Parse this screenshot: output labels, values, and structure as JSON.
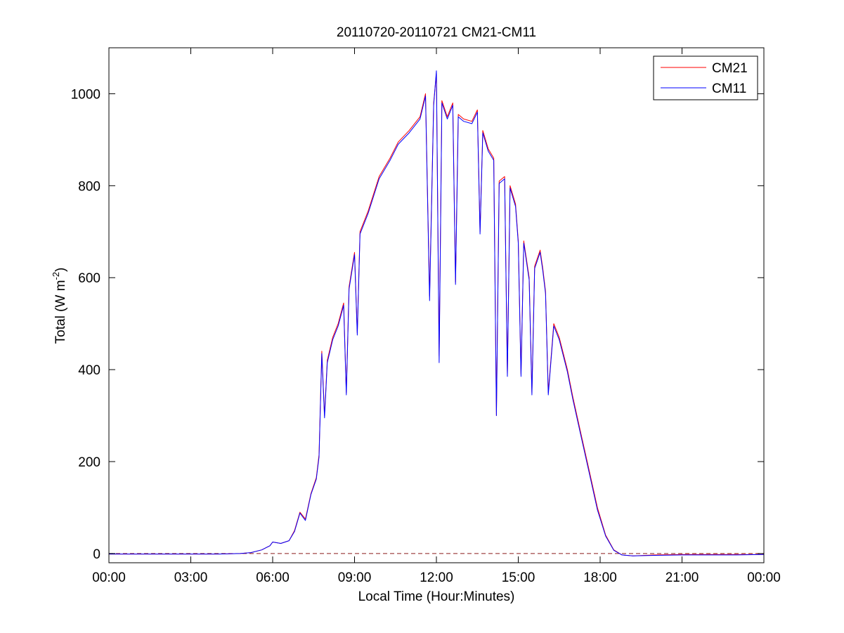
{
  "chart_data": {
    "type": "line",
    "title": "20110720-20110721 CM21-CM11",
    "xlabel": "Local Time (Hour:Minutes)",
    "ylabel": "Total (W m",
    "ylabel_sup": "-2",
    "ylabel_close": ")",
    "xlim_hours": [
      0,
      24
    ],
    "ylim": [
      -20,
      1100
    ],
    "grid": false,
    "legend_position": "top-right",
    "x_ticks": [
      {
        "hours": 0,
        "label": "00:00"
      },
      {
        "hours": 3,
        "label": "03:00"
      },
      {
        "hours": 6,
        "label": "06:00"
      },
      {
        "hours": 9,
        "label": "09:00"
      },
      {
        "hours": 12,
        "label": "12:00"
      },
      {
        "hours": 15,
        "label": "15:00"
      },
      {
        "hours": 18,
        "label": "18:00"
      },
      {
        "hours": 21,
        "label": "21:00"
      },
      {
        "hours": 24,
        "label": "00:00"
      }
    ],
    "y_ticks": [
      {
        "value": 0,
        "label": "0"
      },
      {
        "value": 200,
        "label": "200"
      },
      {
        "value": 400,
        "label": "400"
      },
      {
        "value": 600,
        "label": "600"
      },
      {
        "value": 800,
        "label": "800"
      },
      {
        "value": 1000,
        "label": "1000"
      }
    ],
    "zero_reference_line": {
      "value": 0,
      "style": "dashed",
      "color": "#8B1A1A"
    },
    "series": [
      {
        "name": "CM21",
        "color": "#ff0000",
        "points": [
          [
            0,
            -1
          ],
          [
            1,
            -1
          ],
          [
            2,
            -1
          ],
          [
            3,
            -1
          ],
          [
            4,
            -1
          ],
          [
            4.8,
            0
          ],
          [
            5.2,
            2
          ],
          [
            5.6,
            8
          ],
          [
            5.9,
            17
          ],
          [
            6.0,
            25
          ],
          [
            6.3,
            22
          ],
          [
            6.6,
            28
          ],
          [
            6.8,
            50
          ],
          [
            7.0,
            90
          ],
          [
            7.2,
            75
          ],
          [
            7.4,
            130
          ],
          [
            7.6,
            165
          ],
          [
            7.7,
            215
          ],
          [
            7.8,
            440
          ],
          [
            7.9,
            300
          ],
          [
            8.0,
            420
          ],
          [
            8.2,
            470
          ],
          [
            8.4,
            500
          ],
          [
            8.6,
            545
          ],
          [
            8.7,
            350
          ],
          [
            8.8,
            580
          ],
          [
            9.0,
            655
          ],
          [
            9.1,
            480
          ],
          [
            9.2,
            700
          ],
          [
            9.5,
            745
          ],
          [
            9.9,
            820
          ],
          [
            10.3,
            860
          ],
          [
            10.6,
            895
          ],
          [
            11.0,
            920
          ],
          [
            11.4,
            950
          ],
          [
            11.6,
            1000
          ],
          [
            11.75,
            560
          ],
          [
            11.9,
            980
          ],
          [
            12.0,
            1045
          ],
          [
            12.1,
            430
          ],
          [
            12.2,
            985
          ],
          [
            12.4,
            950
          ],
          [
            12.6,
            980
          ],
          [
            12.7,
            590
          ],
          [
            12.8,
            955
          ],
          [
            13.0,
            945
          ],
          [
            13.3,
            940
          ],
          [
            13.5,
            965
          ],
          [
            13.6,
            700
          ],
          [
            13.7,
            920
          ],
          [
            13.9,
            880
          ],
          [
            14.1,
            860
          ],
          [
            14.2,
            300
          ],
          [
            14.3,
            810
          ],
          [
            14.5,
            820
          ],
          [
            14.6,
            390
          ],
          [
            14.7,
            800
          ],
          [
            14.9,
            760
          ],
          [
            15.0,
            680
          ],
          [
            15.1,
            390
          ],
          [
            15.2,
            680
          ],
          [
            15.4,
            600
          ],
          [
            15.5,
            350
          ],
          [
            15.6,
            625
          ],
          [
            15.8,
            660
          ],
          [
            15.9,
            620
          ],
          [
            16.0,
            570
          ],
          [
            16.1,
            350
          ],
          [
            16.3,
            500
          ],
          [
            16.5,
            470
          ],
          [
            16.8,
            400
          ],
          [
            17.0,
            340
          ],
          [
            17.3,
            260
          ],
          [
            17.6,
            180
          ],
          [
            17.9,
            100
          ],
          [
            18.2,
            40
          ],
          [
            18.5,
            8
          ],
          [
            18.8,
            -3
          ],
          [
            19.2,
            -5
          ],
          [
            20,
            -3
          ],
          [
            21,
            -2
          ],
          [
            22,
            -2
          ],
          [
            23,
            -2
          ],
          [
            24,
            -2
          ]
        ]
      },
      {
        "name": "CM11",
        "color": "#0000ff",
        "points": [
          [
            0,
            -1
          ],
          [
            1,
            -1
          ],
          [
            2,
            -1
          ],
          [
            3,
            -1
          ],
          [
            4,
            -1
          ],
          [
            4.8,
            0
          ],
          [
            5.2,
            2
          ],
          [
            5.6,
            8
          ],
          [
            5.9,
            17
          ],
          [
            6.0,
            25
          ],
          [
            6.3,
            22
          ],
          [
            6.6,
            28
          ],
          [
            6.8,
            48
          ],
          [
            7.0,
            88
          ],
          [
            7.2,
            72
          ],
          [
            7.4,
            128
          ],
          [
            7.6,
            162
          ],
          [
            7.7,
            210
          ],
          [
            7.8,
            435
          ],
          [
            7.9,
            295
          ],
          [
            8.0,
            415
          ],
          [
            8.2,
            465
          ],
          [
            8.4,
            495
          ],
          [
            8.6,
            540
          ],
          [
            8.7,
            345
          ],
          [
            8.8,
            575
          ],
          [
            9.0,
            650
          ],
          [
            9.1,
            475
          ],
          [
            9.2,
            695
          ],
          [
            9.5,
            740
          ],
          [
            9.9,
            815
          ],
          [
            10.3,
            855
          ],
          [
            10.6,
            890
          ],
          [
            11.0,
            915
          ],
          [
            11.4,
            945
          ],
          [
            11.6,
            995
          ],
          [
            11.75,
            550
          ],
          [
            11.9,
            975
          ],
          [
            12.0,
            1050
          ],
          [
            12.1,
            415
          ],
          [
            12.2,
            980
          ],
          [
            12.4,
            945
          ],
          [
            12.6,
            975
          ],
          [
            12.7,
            585
          ],
          [
            12.8,
            950
          ],
          [
            13.0,
            940
          ],
          [
            13.3,
            935
          ],
          [
            13.5,
            960
          ],
          [
            13.6,
            695
          ],
          [
            13.7,
            915
          ],
          [
            13.9,
            875
          ],
          [
            14.1,
            855
          ],
          [
            14.2,
            300
          ],
          [
            14.3,
            805
          ],
          [
            14.5,
            815
          ],
          [
            14.6,
            385
          ],
          [
            14.7,
            795
          ],
          [
            14.9,
            755
          ],
          [
            15.0,
            675
          ],
          [
            15.1,
            385
          ],
          [
            15.2,
            675
          ],
          [
            15.4,
            595
          ],
          [
            15.5,
            345
          ],
          [
            15.6,
            620
          ],
          [
            15.8,
            655
          ],
          [
            15.9,
            615
          ],
          [
            16.0,
            565
          ],
          [
            16.1,
            345
          ],
          [
            16.3,
            495
          ],
          [
            16.5,
            465
          ],
          [
            16.8,
            395
          ],
          [
            17.0,
            335
          ],
          [
            17.3,
            255
          ],
          [
            17.6,
            175
          ],
          [
            17.9,
            95
          ],
          [
            18.2,
            38
          ],
          [
            18.5,
            7
          ],
          [
            18.8,
            -3
          ],
          [
            19.2,
            -5
          ],
          [
            20,
            -4
          ],
          [
            21,
            -3
          ],
          [
            22,
            -3
          ],
          [
            23,
            -3
          ],
          [
            24,
            -2
          ]
        ]
      }
    ]
  }
}
